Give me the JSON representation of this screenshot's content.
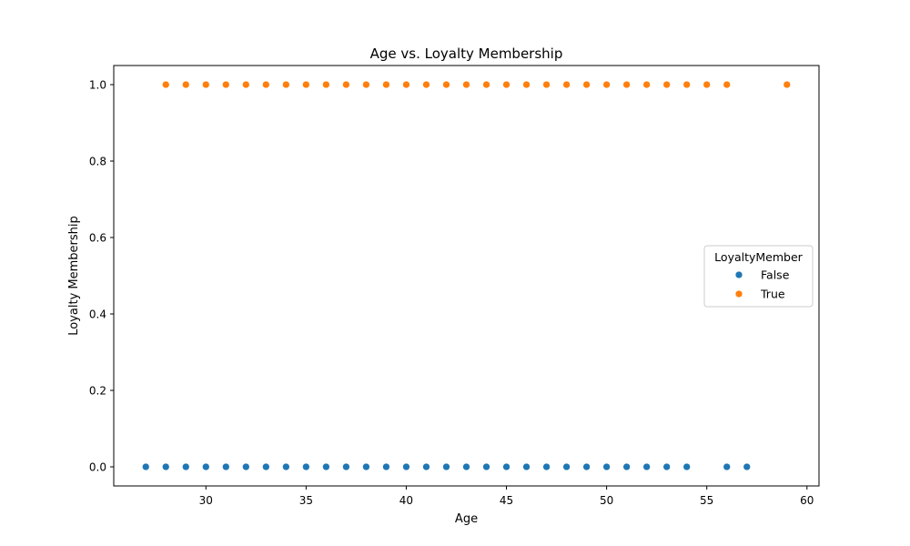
{
  "chart_data": {
    "type": "scatter",
    "title": "Age vs. Loyalty Membership",
    "xlabel": "Age",
    "ylabel": "Loyalty Membership",
    "xlim": [
      25.4,
      60.6
    ],
    "ylim": [
      -0.05,
      1.05
    ],
    "xticks": [
      30,
      35,
      40,
      45,
      50,
      55,
      60
    ],
    "yticks": [
      0.0,
      0.2,
      0.4,
      0.6,
      0.8,
      1.0
    ],
    "grid": false,
    "legend": {
      "title": "LoyaltyMember",
      "position": "center-right"
    },
    "series": [
      {
        "name": "False",
        "color": "#1f77b4",
        "y_value": 0,
        "x": [
          27,
          28,
          29,
          30,
          31,
          32,
          33,
          34,
          35,
          36,
          37,
          38,
          39,
          40,
          41,
          42,
          43,
          44,
          45,
          46,
          47,
          48,
          49,
          50,
          51,
          52,
          53,
          54,
          56,
          57
        ]
      },
      {
        "name": "True",
        "color": "#ff7f0e",
        "y_value": 1,
        "x": [
          28,
          29,
          30,
          31,
          32,
          33,
          34,
          35,
          36,
          37,
          38,
          39,
          40,
          41,
          42,
          43,
          44,
          45,
          46,
          47,
          48,
          49,
          50,
          51,
          52,
          53,
          54,
          55,
          56,
          59
        ]
      }
    ]
  }
}
